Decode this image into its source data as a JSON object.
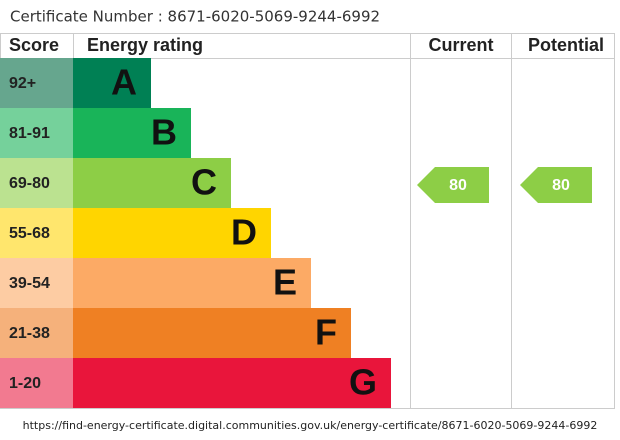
{
  "header": {
    "certificate": "Certificate Number : 8671-6020-5069-9244-6992"
  },
  "columns": [
    "Score",
    "Energy rating",
    "Current",
    "Potential"
  ],
  "bands": [
    {
      "score": "92+",
      "letter": "A",
      "color": "#008054",
      "light": "#66a68e"
    },
    {
      "score": "81-91",
      "letter": "B",
      "color": "#19b459",
      "light": "#75d19b"
    },
    {
      "score": "69-80",
      "letter": "C",
      "color": "#8dce46",
      "light": "#bbe290"
    },
    {
      "score": "55-68",
      "letter": "D",
      "color": "#ffd500",
      "light": "#ffe66d"
    },
    {
      "score": "39-54",
      "letter": "E",
      "color": "#fcaa65",
      "light": "#fdcca3"
    },
    {
      "score": "21-38",
      "letter": "F",
      "color": "#ef8023",
      "light": "#f5b17b"
    },
    {
      "score": "1-20",
      "letter": "G",
      "color": "#e9153b",
      "light": "#f27a90"
    }
  ],
  "current": "80",
  "potential": "80",
  "footer": {
    "url": "https://find-energy-certificate.digital.communities.gov.uk/energy-certificate/8671-6020-5069-9244-6992"
  }
}
